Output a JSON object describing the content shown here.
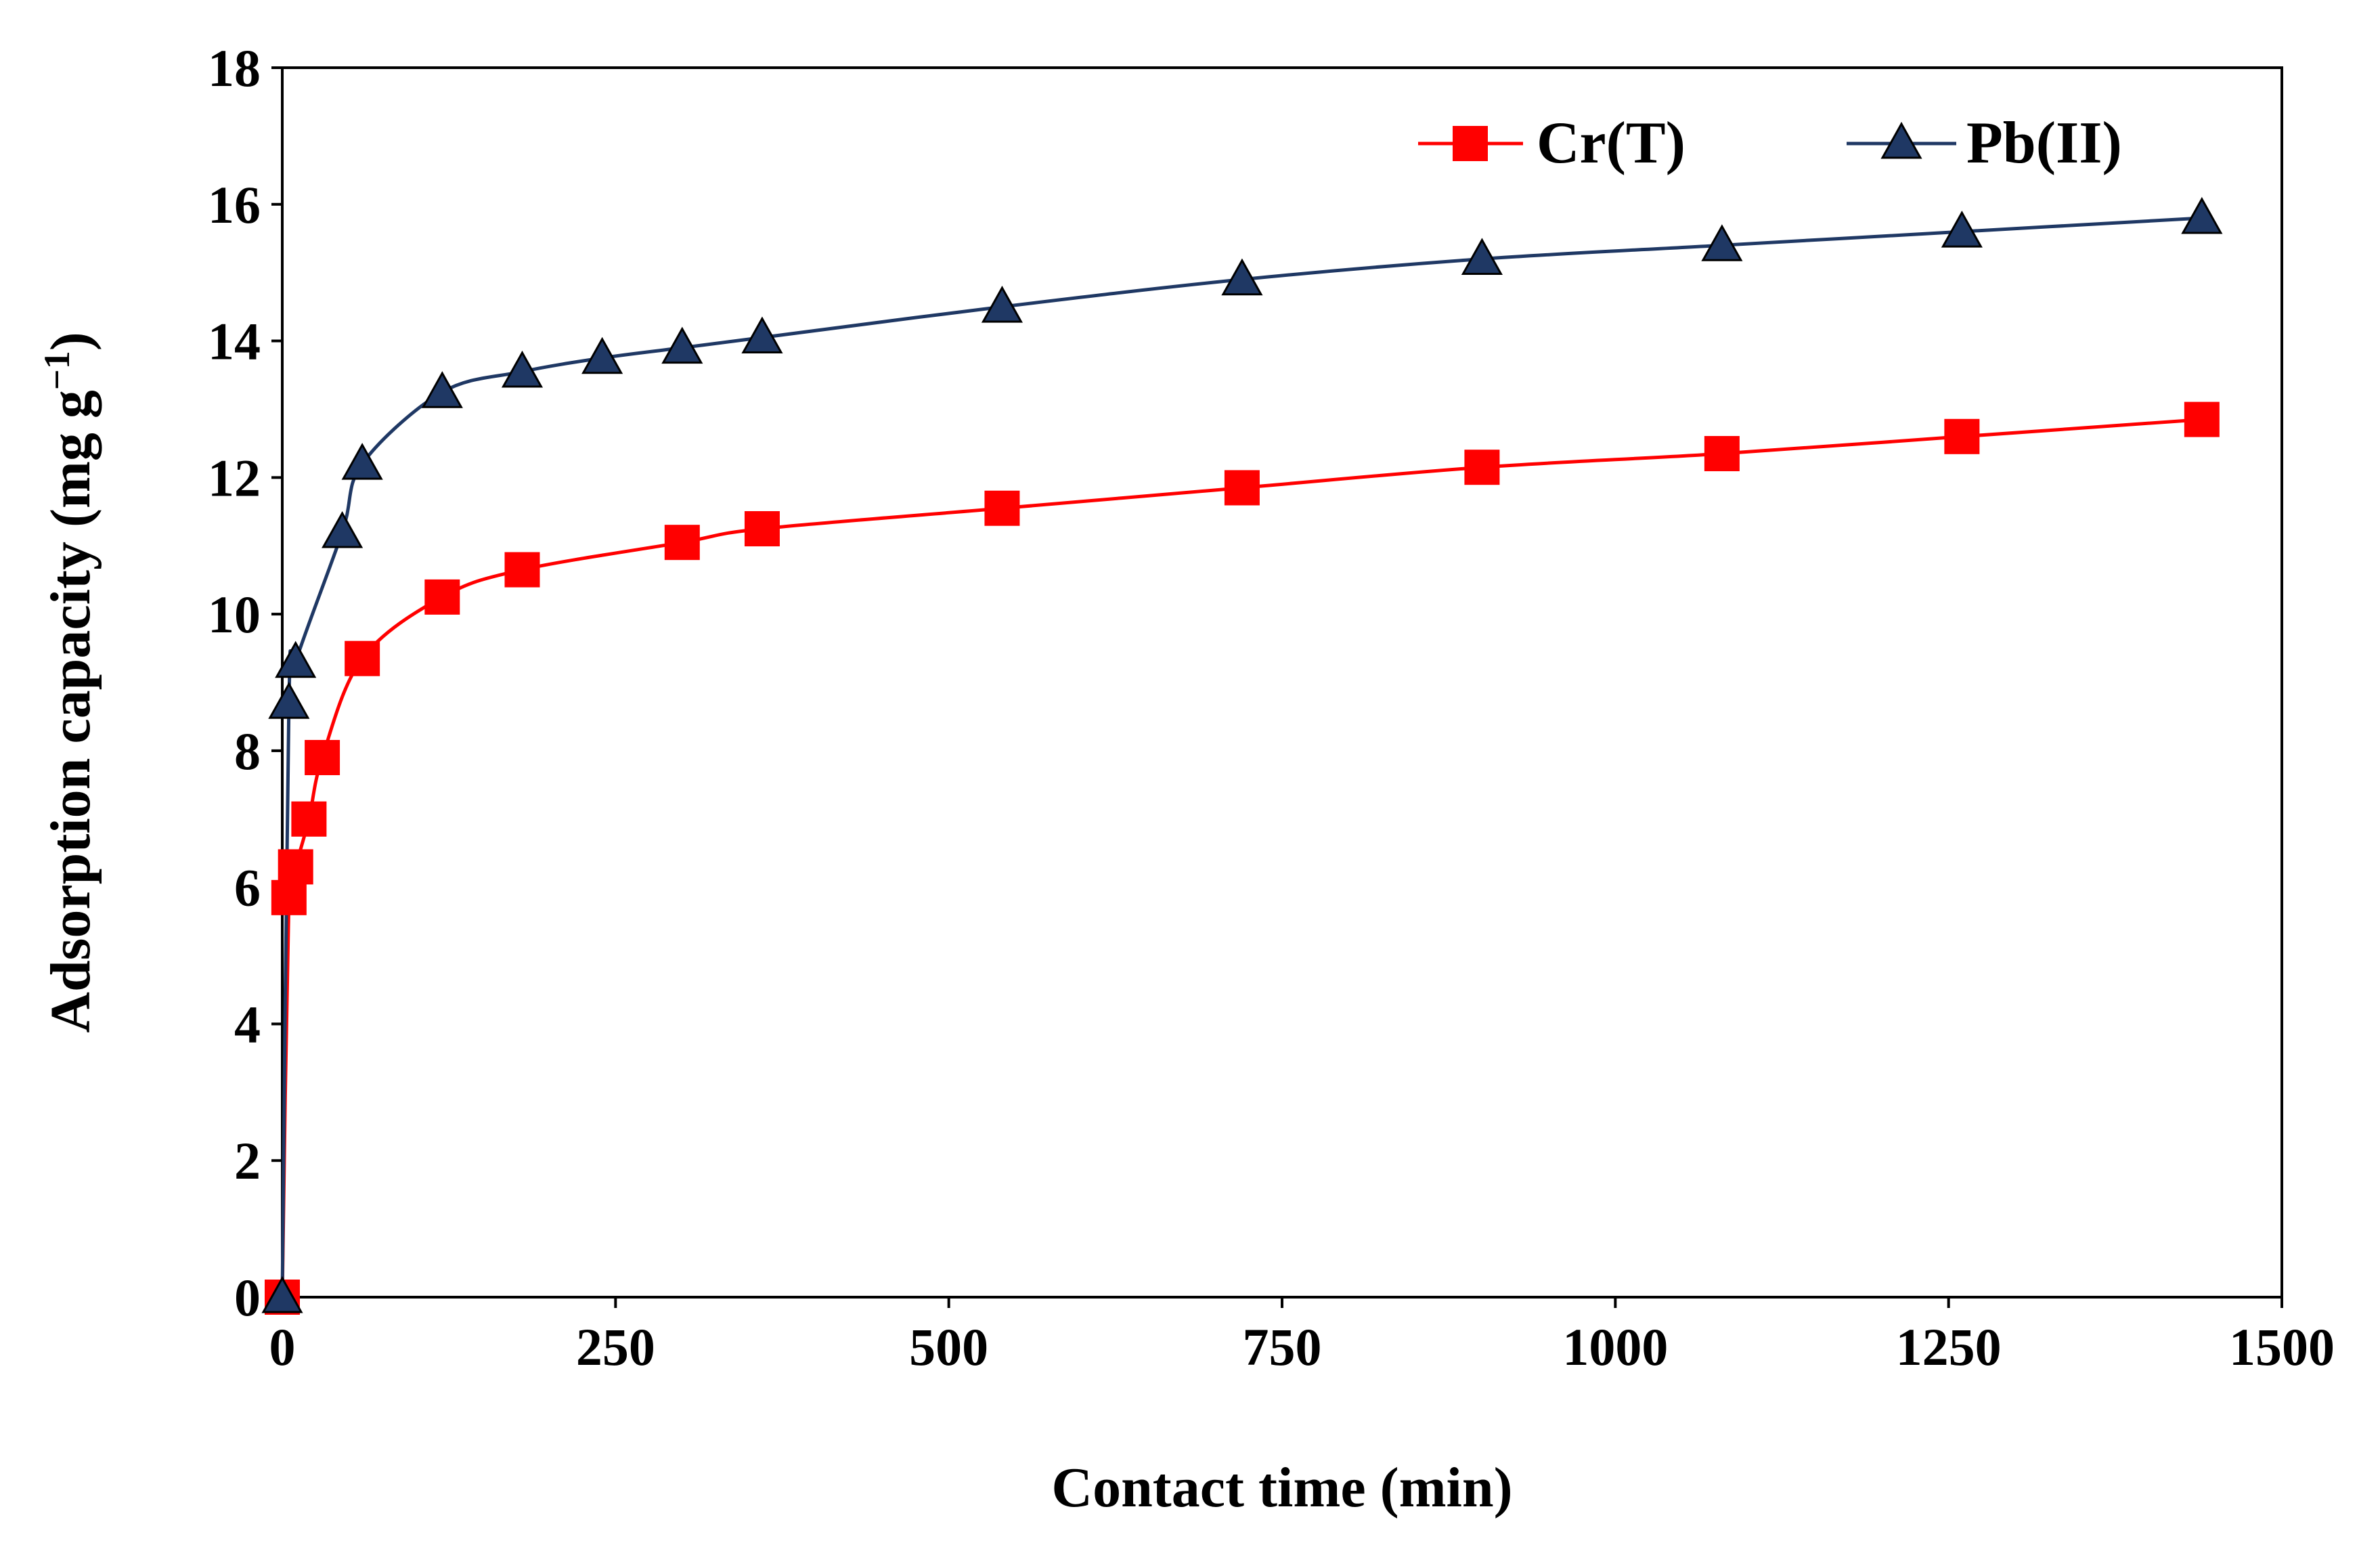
{
  "chart_data": {
    "type": "line",
    "title": "",
    "xlabel": "Contact time (min)",
    "ylabel_main": "Adsorption capacity (mg g",
    "ylabel_sup": "−1",
    "ylabel_close": ")",
    "xlim": [
      0,
      1500
    ],
    "ylim": [
      0,
      18
    ],
    "xticks": [
      0,
      250,
      500,
      750,
      1000,
      1250,
      1500
    ],
    "yticks": [
      0,
      2,
      4,
      6,
      8,
      10,
      12,
      14,
      16,
      18
    ],
    "grid": false,
    "legend_position": "top-right",
    "series": [
      {
        "name": "Cr(T)",
        "color": "#ff0000",
        "marker": "square",
        "x": [
          0,
          5,
          10,
          20,
          30,
          60,
          120,
          180,
          300,
          360,
          540,
          720,
          900,
          1080,
          1260,
          1440
        ],
        "y": [
          0,
          5.85,
          6.3,
          7.0,
          7.9,
          9.35,
          10.25,
          10.65,
          11.05,
          11.25,
          11.55,
          11.85,
          12.15,
          12.35,
          12.6,
          12.85
        ]
      },
      {
        "name": "Pb(II)",
        "color": "#1f3864",
        "marker": "triangle",
        "x": [
          0,
          5,
          10,
          45,
          60,
          120,
          180,
          240,
          300,
          360,
          540,
          720,
          900,
          1080,
          1260,
          1440
        ],
        "y": [
          0,
          8.7,
          9.3,
          11.2,
          12.2,
          13.25,
          13.55,
          13.75,
          13.9,
          14.05,
          14.5,
          14.9,
          15.2,
          15.4,
          15.6,
          15.8
        ]
      }
    ]
  }
}
